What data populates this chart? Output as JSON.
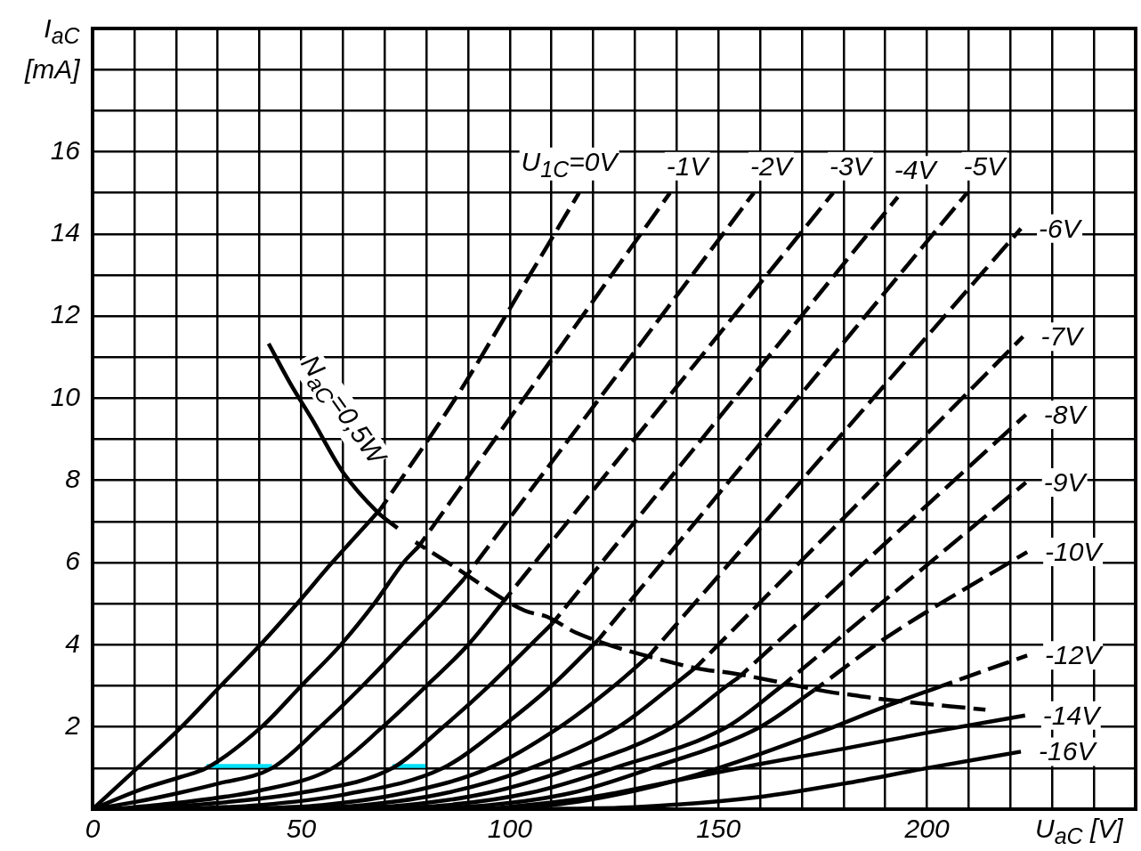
{
  "chart_data": {
    "type": "line",
    "xlabel": "U$_{aC}$ [V]",
    "ylabel": "I$_{aC}$ [mA]",
    "grid": true,
    "xlim": [
      0,
      250
    ],
    "ylim": [
      0,
      19
    ],
    "xticks": [
      0,
      {
        "value": 10,
        "label": null
      },
      {
        "value": 20,
        "label": null
      },
      {
        "value": 30,
        "label": null
      },
      {
        "value": 40,
        "label": null
      },
      50,
      {
        "value": 60,
        "label": null
      },
      {
        "value": 70,
        "label": null
      },
      {
        "value": 80,
        "label": null
      },
      {
        "value": 90,
        "label": null
      },
      100,
      {
        "value": 110,
        "label": null
      },
      {
        "value": 120,
        "label": null
      },
      {
        "value": 130,
        "label": null
      },
      {
        "value": 140,
        "label": null
      },
      150,
      {
        "value": 160,
        "label": null
      },
      {
        "value": 170,
        "label": null
      },
      {
        "value": 180,
        "label": null
      },
      {
        "value": 190,
        "label": null
      },
      200,
      {
        "value": 210,
        "label": null
      },
      {
        "value": 220,
        "label": null
      },
      {
        "value": 230,
        "label": null
      },
      {
        "value": 240,
        "label": null
      },
      {
        "value": 250,
        "label": null
      }
    ],
    "yticks": [
      {
        "value": 0,
        "label": null
      },
      {
        "value": 1,
        "label": null
      },
      2,
      {
        "value": 3,
        "label": null
      },
      4,
      {
        "value": 5,
        "label": null
      },
      6,
      {
        "value": 7,
        "label": null
      },
      8,
      {
        "value": 9,
        "label": null
      },
      10,
      {
        "value": 11,
        "label": null
      },
      12,
      {
        "value": 13,
        "label": null
      },
      14,
      {
        "value": 15,
        "label": null
      },
      16,
      {
        "value": 17,
        "label": null
      },
      {
        "value": 18,
        "label": null
      },
      {
        "value": 19,
        "label": null
      }
    ],
    "series": [
      {
        "color": "#000000",
        "x": [
          0,
          10.7,
          21.3,
          30.7,
          40.2,
          49,
          57.4,
          66.3,
          69
        ],
        "values": [
          0,
          1,
          2,
          3,
          4,
          5,
          6,
          7,
          7.3
        ]
      },
      {
        "name": "U$_{1C}$=0V",
        "color": "#000000",
        "line_style": "dashed",
        "x": [
          69,
          87,
          104.8,
          116.6
        ],
        "values": [
          7.3,
          10,
          13,
          15
        ]
      },
      {
        "color": "#000000",
        "x": [
          0,
          11.3,
          21,
          27.3,
          40.5,
          50,
          59.5,
          67.5,
          74.5,
          78.2
        ],
        "values": [
          0,
          0.47,
          0.78,
          1,
          2,
          3,
          4,
          5,
          6,
          6.4
        ]
      },
      {
        "name": "-1V",
        "color": "#000000",
        "line_style": "dashed",
        "x": [
          78.2,
          138.4
        ],
        "values": [
          6.4,
          15
        ]
      },
      {
        "color": "#000000",
        "x": [
          0,
          10,
          20,
          30,
          43,
          54.5,
          64.7,
          74.2,
          83.7,
          89
        ],
        "values": [
          0,
          0.17,
          0.38,
          0.62,
          1,
          2,
          3,
          4,
          5,
          5.6
        ]
      },
      {
        "name": "-2V",
        "color": "#000000",
        "line_style": "dashed",
        "x": [
          89,
          158.5
        ],
        "values": [
          5.6,
          15
        ]
      },
      {
        "color": "#000000",
        "x": [
          5,
          20,
          40,
          57.5,
          69.5,
          80,
          90,
          98.6
        ],
        "values": [
          0,
          0.15,
          0.45,
          1,
          2,
          3,
          4,
          5.07
        ]
      },
      {
        "name": "-3V",
        "color": "#000000",
        "line_style": "dashed",
        "x": [
          98.6,
          177.5
        ],
        "values": [
          5.07,
          15
        ]
      },
      {
        "color": "#000000",
        "x": [
          10,
          30,
          50,
          71.9,
          84,
          95,
          105,
          110.3
        ],
        "values": [
          0,
          0.15,
          0.4,
          1,
          2,
          3,
          4,
          4.53
        ]
      },
      {
        "name": "-4V",
        "color": "#000000",
        "line_style": "dashed",
        "x": [
          110.3,
          193
        ],
        "values": [
          4.53,
          14.9
        ]
      },
      {
        "color": "#000000",
        "x": [
          20,
          40,
          60,
          84,
          98,
          110,
          121.2
        ],
        "values": [
          0,
          0.1,
          0.35,
          1,
          2,
          3,
          4.12
        ]
      },
      {
        "name": "-5V",
        "color": "#000000",
        "line_style": "dashed",
        "x": [
          121.2,
          209.6
        ],
        "values": [
          4.12,
          15
        ]
      },
      {
        "color": "#000000",
        "x": [
          30,
          55,
          75,
          95,
          112,
          125,
          133.5
        ],
        "values": [
          0,
          0.1,
          0.4,
          1,
          2,
          3,
          3.75
        ]
      },
      {
        "name": "-6V",
        "color": "#000000",
        "line_style": "dashed",
        "x": [
          133.5,
          222.5
        ],
        "values": [
          3.75,
          14.13
        ]
      },
      {
        "color": "#000000",
        "x": [
          40,
          65,
          85,
          105,
          126,
          139,
          144.7
        ],
        "values": [
          0,
          0.1,
          0.4,
          1,
          2,
          3,
          3.46
        ]
      },
      {
        "name": "-7V",
        "color": "#000000",
        "line_style": "dashed",
        "x": [
          144.7,
          223
        ],
        "values": [
          3.46,
          11.5
        ]
      },
      {
        "color": "#000000",
        "x": [
          50,
          75,
          95,
          115,
          139,
          152,
          155
        ],
        "values": [
          0,
          0.1,
          0.4,
          1,
          2,
          3,
          3.22
        ]
      },
      {
        "name": "-8V",
        "color": "#000000",
        "line_style": "dashed",
        "x": [
          155,
          223.7
        ],
        "values": [
          3.22,
          9.6
        ]
      },
      {
        "color": "#000000",
        "x": [
          60,
          85,
          105,
          125,
          152,
          165.5
        ],
        "values": [
          0,
          0.1,
          0.4,
          1,
          2,
          3.02
        ]
      },
      {
        "name": "-9V",
        "color": "#000000",
        "line_style": "dashed",
        "x": [
          165.5,
          223.7
        ],
        "values": [
          3.02,
          7.95
        ]
      },
      {
        "color": "#000000",
        "x": [
          70,
          95,
          115,
          134,
          160,
          173
        ],
        "values": [
          0,
          0.1,
          0.4,
          1,
          2,
          2.9
        ]
      },
      {
        "name": "-10V",
        "color": "#000000",
        "line_style": "dashed",
        "x": [
          173,
          190,
          224
        ],
        "values": [
          2.9,
          4.16,
          6.26
        ]
      },
      {
        "color": "#000000",
        "x": [
          85,
          110,
          130,
          150,
          175,
          190,
          203.5
        ],
        "values": [
          0,
          0.1,
          0.45,
          1,
          1.9,
          2.5,
          3
        ]
      },
      {
        "name": "-12V",
        "color": "#000000",
        "line_style": "dashed",
        "x": [
          203.5,
          224
        ],
        "values": [
          3,
          3.74
        ]
      },
      {
        "name": "-14V",
        "color": "#000000",
        "x": [
          95,
          120,
          140,
          160,
          180,
          200,
          223.5
        ],
        "values": [
          0,
          0.3,
          0.7,
          1.1,
          1.47,
          1.86,
          2.28
        ]
      },
      {
        "name": "-16V",
        "color": "#000000",
        "x": [
          105,
          130,
          160,
          180,
          200,
          222.5
        ],
        "values": [
          0,
          0.05,
          0.3,
          0.62,
          1,
          1.4
        ]
      },
      {
        "name": "N$_{aC}$=0,5W",
        "color": "#000000",
        "x": [
          42.2,
          47.4,
          52.6,
          60,
          68.3,
          73.1
        ],
        "values": [
          11.33,
          10.36,
          9.49,
          8.2,
          7.23,
          6.84
        ]
      },
      {
        "color": "#000000",
        "line_style": "dashed",
        "x": [
          77.4,
          85.5,
          103.6,
          109,
          116,
          140,
          147,
          152.6,
          178,
          182,
          189,
          214
        ],
        "values": [
          6.5,
          5.98,
          4.83,
          4.68,
          4.29,
          3.54,
          3.39,
          3.32,
          2.83,
          2.78,
          2.68,
          2.42
        ]
      },
      {
        "color": "#00e1f9",
        "x": [
          27.3,
          43
        ],
        "values": [
          1.05,
          1.05
        ]
      },
      {
        "color": "#00e1f9",
        "x": [
          71.9,
          79.8
        ],
        "values": [
          1.05,
          1.05
        ]
      }
    ]
  }
}
